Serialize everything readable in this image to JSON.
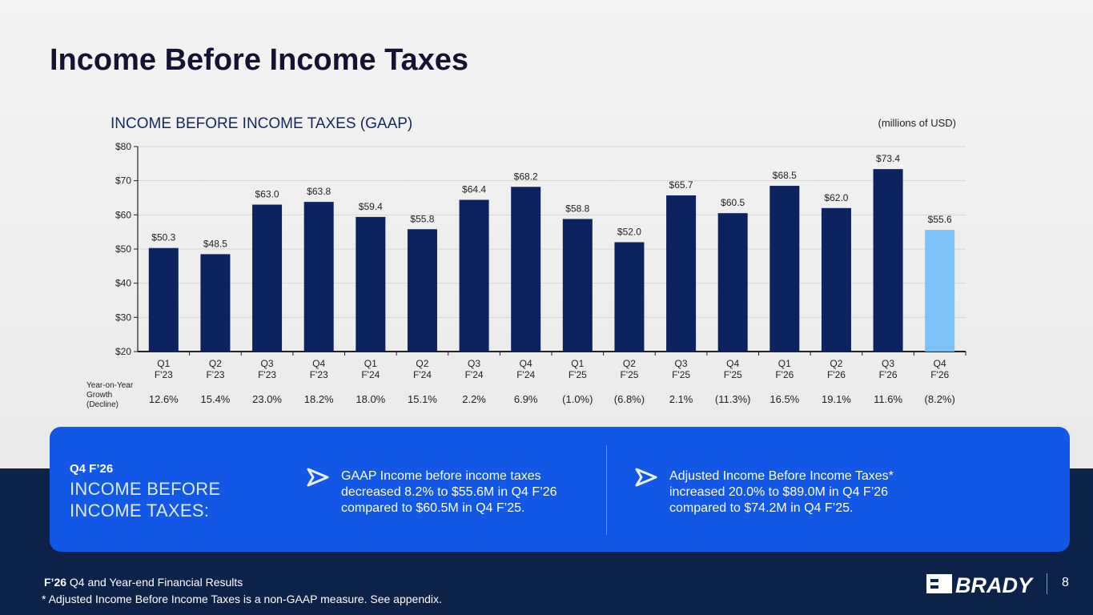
{
  "page": {
    "title": "Income Before Income Taxes",
    "page_number": "8"
  },
  "chart_data": {
    "type": "bar",
    "title": "INCOME BEFORE INCOME TAXES (GAAP)",
    "units": "(millions of USD)",
    "categories": [
      [
        "Q1",
        "F'23"
      ],
      [
        "Q2",
        "F'23"
      ],
      [
        "Q3",
        "F'23"
      ],
      [
        "Q4",
        "F'23"
      ],
      [
        "Q1",
        "F'24"
      ],
      [
        "Q2",
        "F'24"
      ],
      [
        "Q3",
        "F'24"
      ],
      [
        "Q4",
        "F'24"
      ],
      [
        "Q1",
        "F'25"
      ],
      [
        "Q2",
        "F'25"
      ],
      [
        "Q3",
        "F'25"
      ],
      [
        "Q4",
        "F'25"
      ],
      [
        "Q1",
        "F'26"
      ],
      [
        "Q2",
        "F'26"
      ],
      [
        "Q3",
        "F'26"
      ],
      [
        "Q4",
        "F'26"
      ]
    ],
    "values": [
      50.3,
      48.5,
      63.0,
      63.8,
      59.4,
      55.8,
      64.4,
      68.2,
      58.8,
      52.0,
      65.7,
      60.5,
      68.5,
      62.0,
      73.4,
      55.6
    ],
    "value_labels": [
      "$50.3",
      "$48.5",
      "$63.0",
      "$63.8",
      "$59.4",
      "$55.8",
      "$64.4",
      "$68.2",
      "$58.8",
      "$52.0",
      "$65.7",
      "$60.5",
      "$68.5",
      "$62.0",
      "$73.4",
      "$55.6"
    ],
    "yticks": [
      20,
      30,
      40,
      50,
      60,
      70,
      80
    ],
    "ytick_labels": [
      "$20",
      "$30",
      "$40",
      "$50",
      "$60",
      "$70",
      "$80"
    ],
    "ylim": [
      20,
      80
    ],
    "bar_color": "#0d2260",
    "highlight_color": "#7cc1f7",
    "highlight_index": 15,
    "grid": true,
    "growth_label": "Year-on-Year Growth (Decline)",
    "growth": [
      "12.6%",
      "15.4%",
      "23.0%",
      "18.2%",
      "18.0%",
      "15.1%",
      "2.2%",
      "6.9%",
      "(1.0%)",
      "(6.8%)",
      "2.1%",
      "(11.3%)",
      "16.5%",
      "19.1%",
      "11.6%",
      "(8.2%)"
    ]
  },
  "callout": {
    "quarter": "Q4 F’26",
    "heading": "INCOME BEFORE INCOME TAXES:",
    "point1": "GAAP Income before income taxes decreased 8.2% to $55.6M in Q4 F’26 compared to $60.5M in Q4 F’25.",
    "point2": "Adjusted Income Before Income Taxes* increased 20.0% to $89.0M in Q4 F’26 compared to $74.2M in Q4 F’25.",
    "accent_color": "#1257e6"
  },
  "footer": {
    "period_bold": "F’26",
    "period_rest": " Q4 and Year-end Financial Results",
    "note": "* Adjusted Income Before Income Taxes is a non-GAAP measure.  See appendix.",
    "logo_text": "BRADY"
  }
}
